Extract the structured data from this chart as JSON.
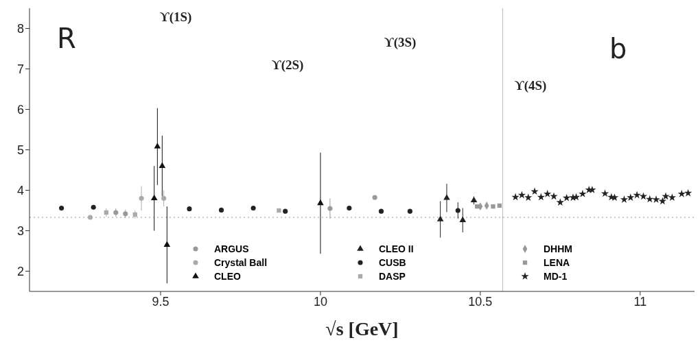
{
  "chart_data": {
    "type": "scatter",
    "xlabel": "√s  [GeV]",
    "xlim": [
      9.09,
      11.17
    ],
    "xticks": [
      9.5,
      10,
      10.5,
      11
    ],
    "ylim": [
      1.5,
      8.5
    ],
    "yticks": [
      2,
      3,
      4,
      5,
      6,
      7,
      8
    ],
    "grid": false,
    "legend": "bottom",
    "annotations": [
      "R",
      "b",
      "ϒ(1S)",
      "ϒ(2S)",
      "ϒ(3S)",
      "ϒ(4S)"
    ],
    "ref_lines": [
      {
        "axis": "y",
        "value": 3.33,
        "label": null,
        "line_style": "dotted",
        "color": "#999999"
      },
      {
        "axis": "x",
        "value": 10.57,
        "label": null,
        "line_style": "solid",
        "color": "#bbbbbb"
      }
    ],
    "series": [
      {
        "name": "ARGUS",
        "marker": "circle",
        "color": "#999999",
        "x": [
          9.36,
          9.39,
          10.17,
          10.03
        ],
        "values": [
          3.45,
          3.42,
          3.82,
          3.55
        ],
        "errors": [
          0.1,
          0.1,
          null,
          0.25
        ]
      },
      {
        "name": "Crystal Ball",
        "marker": "circle",
        "color": "#aaaaaa",
        "x": [
          9.28,
          9.44,
          9.51
        ],
        "values": [
          3.33,
          3.8,
          3.8
        ],
        "errors": [
          0.05,
          0.3,
          0.2
        ]
      },
      {
        "name": "CLEO",
        "marker": "triangle",
        "color": "#111111",
        "x": [
          9.48,
          9.49,
          9.505,
          9.52,
          10.0
        ],
        "values": [
          3.8,
          5.08,
          4.6,
          2.65,
          3.68
        ],
        "errors": [
          0.8,
          0.95,
          0.75,
          0.95,
          1.25
        ]
      },
      {
        "name": "CLEO II",
        "marker": "triangle",
        "color": "#222222",
        "x": [
          10.375,
          10.395,
          10.445,
          10.48
        ],
        "values": [
          3.28,
          3.81,
          3.26,
          3.75
        ],
        "errors": [
          0.45,
          0.35,
          0.3,
          0.1
        ]
      },
      {
        "name": "CUSB",
        "marker": "circle",
        "color": "#222222",
        "x": [
          9.19,
          9.29,
          9.59,
          9.69,
          9.79,
          9.89,
          10.09,
          10.19,
          10.28,
          10.43
        ],
        "values": [
          3.56,
          3.58,
          3.54,
          3.51,
          3.56,
          3.48,
          3.56,
          3.48,
          3.48,
          3.5
        ],
        "errors": [
          0.05,
          0.05,
          0.05,
          0.05,
          0.05,
          0.05,
          0.05,
          0.05,
          0.05,
          0.2
        ]
      },
      {
        "name": "DASP",
        "marker": "square",
        "color": "#aaaaaa",
        "x": [
          9.33,
          9.42,
          9.87
        ],
        "values": [
          3.45,
          3.4,
          3.5
        ],
        "errors": [
          0.1,
          0.1,
          0.05
        ]
      },
      {
        "name": "DHHM",
        "marker": "diamond",
        "color": "#999999",
        "x": [
          10.5,
          10.52
        ],
        "values": [
          3.6,
          3.62
        ]
      },
      {
        "name": "LENA",
        "marker": "square",
        "color": "#999999",
        "x": [
          10.49,
          10.54,
          10.56
        ],
        "values": [
          3.6,
          3.6,
          3.62
        ]
      },
      {
        "name": "MD-1",
        "marker": "star",
        "color": "#222222",
        "x": [
          10.61,
          10.63,
          10.65,
          10.67,
          10.69,
          10.71,
          10.73,
          10.75,
          10.77,
          10.79,
          10.8,
          10.82,
          10.84,
          10.85,
          10.89,
          10.91,
          10.92,
          10.95,
          10.97,
          10.99,
          11.01,
          11.03,
          11.05,
          11.07,
          11.08,
          11.1,
          11.13,
          11.15
        ],
        "values": [
          3.83,
          3.88,
          3.82,
          3.97,
          3.83,
          3.91,
          3.85,
          3.7,
          3.81,
          3.82,
          3.83,
          3.91,
          4.01,
          4.01,
          3.92,
          3.83,
          3.82,
          3.77,
          3.82,
          3.88,
          3.85,
          3.78,
          3.77,
          3.73,
          3.85,
          3.82,
          3.91,
          3.93
        ]
      }
    ]
  }
}
